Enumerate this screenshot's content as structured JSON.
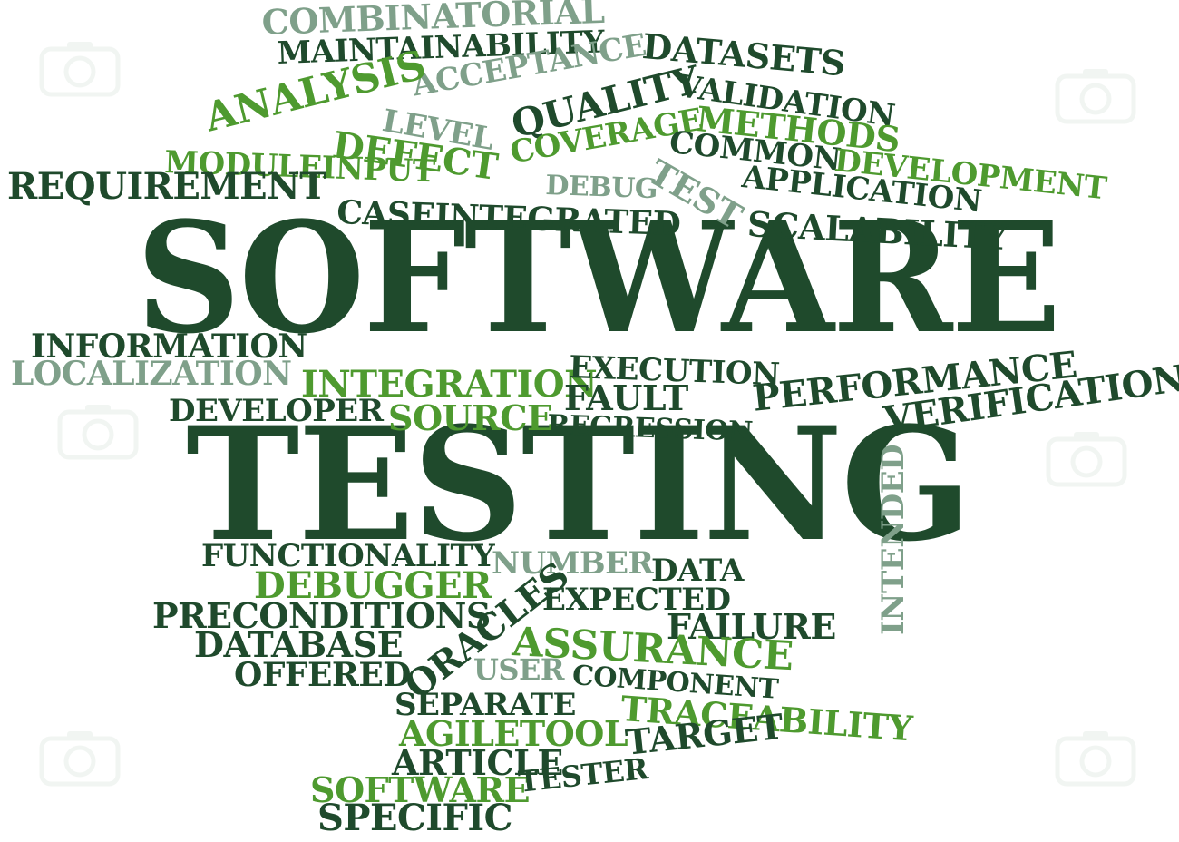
{
  "palette": {
    "dark": "#1f4a2c",
    "green": "#4e9a2f",
    "mid": "#3c7a34",
    "gray": "#7fa08a",
    "watermark": "#d9e4dc"
  },
  "words": [
    {
      "id": "software-title",
      "text": "SOFTWARE"
    },
    {
      "id": "testing-title",
      "text": "TESTING"
    },
    {
      "id": "combinatorial",
      "text": "COMBINATORIAL"
    },
    {
      "id": "maintainability",
      "text": "MAINTAINABILITY"
    },
    {
      "id": "datasets",
      "text": "DATASETS"
    },
    {
      "id": "acceptance",
      "text": "ACCEPTANCE"
    },
    {
      "id": "analysis",
      "text": "ANALYSIS"
    },
    {
      "id": "quality",
      "text": "QUALITY"
    },
    {
      "id": "validation",
      "text": "VALIDATION"
    },
    {
      "id": "level",
      "text": "LEVEL"
    },
    {
      "id": "methods",
      "text": "METHODS"
    },
    {
      "id": "coverage",
      "text": "COVERAGE"
    },
    {
      "id": "defect",
      "text": "DEFECT"
    },
    {
      "id": "common",
      "text": "COMMON"
    },
    {
      "id": "moduleinput",
      "text": "MODULEINPUT"
    },
    {
      "id": "development",
      "text": "DEVELOPMENT"
    },
    {
      "id": "test",
      "text": "TEST"
    },
    {
      "id": "application",
      "text": "APPLICATION"
    },
    {
      "id": "requirement",
      "text": "REQUIREMENT"
    },
    {
      "id": "debug",
      "text": "DEBUG"
    },
    {
      "id": "caseintegrated",
      "text": "CASEINTEGRATED"
    },
    {
      "id": "scalability",
      "text": "SCALABILITY"
    },
    {
      "id": "information",
      "text": "INFORMATION"
    },
    {
      "id": "localization",
      "text": "LOCALIZATION"
    },
    {
      "id": "integration",
      "text": "INTEGRATION"
    },
    {
      "id": "execution",
      "text": "EXECUTION"
    },
    {
      "id": "fault",
      "text": "FAULT"
    },
    {
      "id": "performance",
      "text": "PERFORMANCE"
    },
    {
      "id": "developer",
      "text": "DEVELOPER"
    },
    {
      "id": "source",
      "text": "SOURCE"
    },
    {
      "id": "regression",
      "text": "REGRESSION"
    },
    {
      "id": "verification",
      "text": "VERIFICATION"
    },
    {
      "id": "intended",
      "text": "INTENDED"
    },
    {
      "id": "functionality",
      "text": "FUNCTIONALITY"
    },
    {
      "id": "number",
      "text": "NUMBER"
    },
    {
      "id": "data",
      "text": "DATA"
    },
    {
      "id": "debugger",
      "text": "DEBUGGER"
    },
    {
      "id": "expected",
      "text": "EXPECTED"
    },
    {
      "id": "preconditions",
      "text": "PRECONDITIONS"
    },
    {
      "id": "oracles",
      "text": "ORACLES"
    },
    {
      "id": "failure",
      "text": "FAILURE"
    },
    {
      "id": "database",
      "text": "DATABASE"
    },
    {
      "id": "assurance",
      "text": "ASSURANCE"
    },
    {
      "id": "offered",
      "text": "OFFERED"
    },
    {
      "id": "user",
      "text": "USER"
    },
    {
      "id": "component",
      "text": "COMPONENT"
    },
    {
      "id": "separate",
      "text": "SEPARATE"
    },
    {
      "id": "traceability",
      "text": "TRACEABILITY"
    },
    {
      "id": "agiletool",
      "text": "AGILETOOL"
    },
    {
      "id": "target",
      "text": "TARGET"
    },
    {
      "id": "article",
      "text": "ARTICLE"
    },
    {
      "id": "software-small",
      "text": "SOFTWARE"
    },
    {
      "id": "tester",
      "text": "TESTER"
    },
    {
      "id": "specific",
      "text": "SPECIFIC"
    }
  ]
}
